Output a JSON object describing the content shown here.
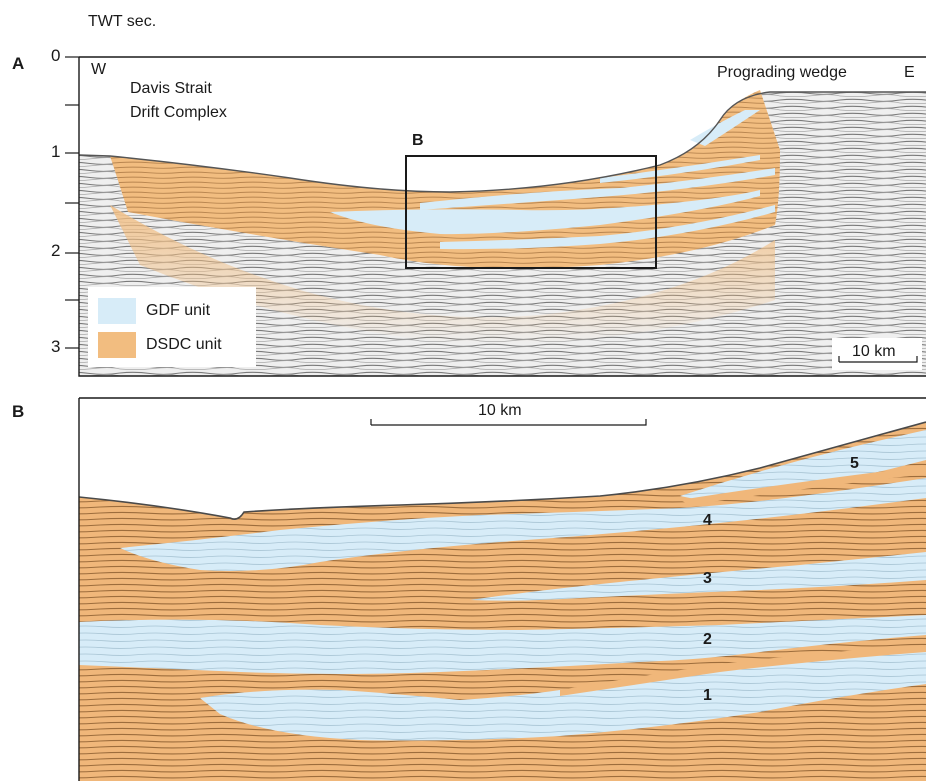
{
  "axis": {
    "unit_label": "TWT sec.",
    "ticks": [
      "0",
      "1",
      "2",
      "3"
    ]
  },
  "panel_a": {
    "letter": "A",
    "west": "W",
    "east": "E",
    "feature_label_line1": "Davis Strait",
    "feature_label_line2": "Drift Complex",
    "wedge_label": "Prograding wedge",
    "inset_label": "B",
    "scale_bar": "10 km",
    "legend": [
      {
        "label": "GDF unit",
        "color": "#d7ecf8"
      },
      {
        "label": "DSDC unit",
        "color": "#f2bd80"
      }
    ]
  },
  "panel_b": {
    "letter": "B",
    "scale_bar": "10 km",
    "layers": [
      "1",
      "2",
      "3",
      "4",
      "5"
    ]
  },
  "colors": {
    "gdf": "#d7ecf8",
    "dsdc": "#f0b77a",
    "seismic": "#6f6f6f",
    "frame": "#222222"
  }
}
